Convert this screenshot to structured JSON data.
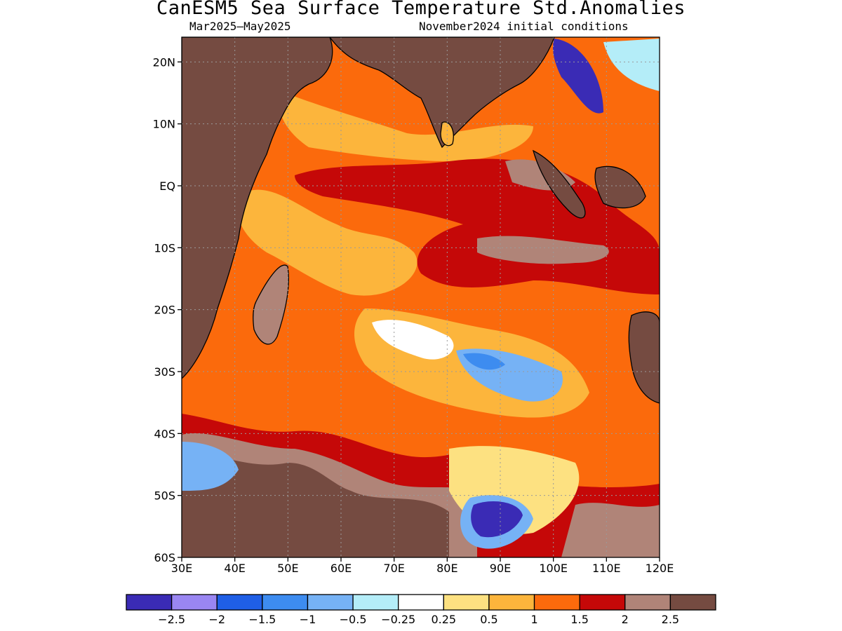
{
  "title": "CanESM5 Sea Surface Temperature Std.Anomalies",
  "subtitle_left": "Mar2025—May2025",
  "subtitle_right": "November2024 initial conditions",
  "map": {
    "lon_range": [
      30,
      120
    ],
    "lat_range": [
      -60,
      24
    ],
    "lat_ticks": [
      "20N",
      "10N",
      "EQ",
      "10S",
      "20S",
      "30S",
      "40S",
      "50S",
      "60S"
    ],
    "lat_values": [
      20,
      10,
      0,
      -10,
      -20,
      -30,
      -40,
      -50,
      -60
    ],
    "lon_ticks": [
      "30E",
      "40E",
      "50E",
      "60E",
      "70E",
      "80E",
      "90E",
      "100E",
      "110E",
      "120E"
    ],
    "lon_values": [
      30,
      40,
      50,
      60,
      70,
      80,
      90,
      100,
      110,
      120
    ],
    "gridlines": "dotted"
  },
  "colorbar": {
    "colors": [
      "#3a2bb5",
      "#9a86f2",
      "#1f5fe6",
      "#3d8cf0",
      "#76b2f5",
      "#b4edf8",
      "#ffffff",
      "#fde181",
      "#fcb53c",
      "#fb6a0c",
      "#c50808",
      "#b08478",
      "#754b41"
    ],
    "labels": [
      "−2.5",
      "−2",
      "−1.5",
      "−1",
      "−0.5",
      "−0.25",
      "0.25",
      "0.5",
      "1",
      "1.5",
      "2",
      "2.5"
    ]
  }
}
